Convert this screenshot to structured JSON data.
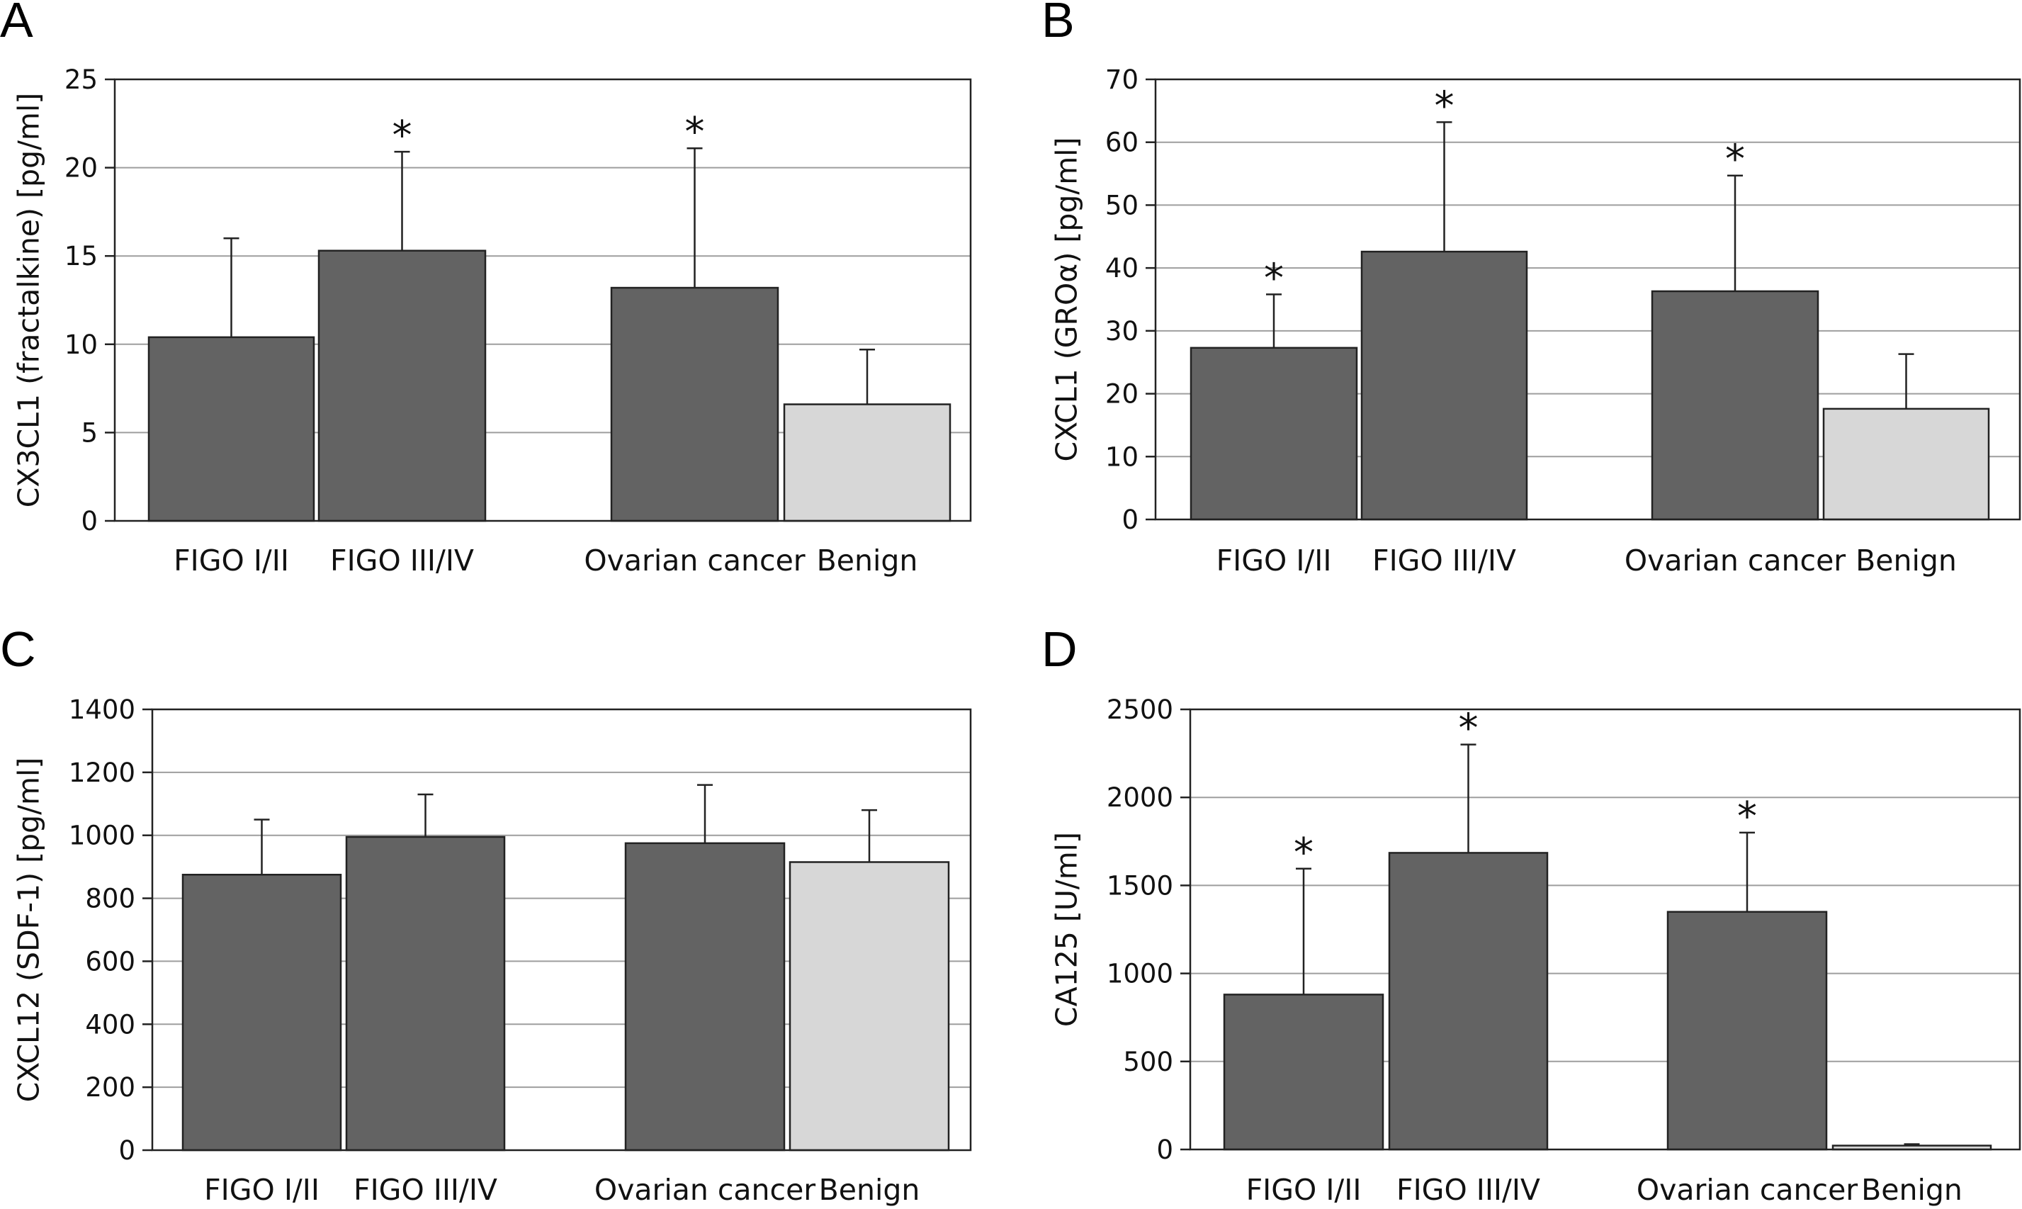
{
  "colors": {
    "cancer": "#636363",
    "benign": "#d7d7d7"
  },
  "chart_data": [
    {
      "panel": "A",
      "type": "bar",
      "ylabel": "CX3CL1 (fractalkine) [pg/ml]",
      "ylim": [
        0,
        25
      ],
      "yticks": [
        0,
        5,
        10,
        15,
        20,
        25
      ],
      "categories": [
        "FIGO I/II",
        "FIGO III/IV",
        "Ovarian cancer",
        "Benign"
      ],
      "values": [
        10.4,
        15.3,
        13.2,
        6.6
      ],
      "errors": [
        5.6,
        5.6,
        7.9,
        3.1
      ],
      "significant": [
        false,
        true,
        true,
        false
      ],
      "grid": true
    },
    {
      "panel": "B",
      "type": "bar",
      "ylabel": "CXCL1 (GROα) [pg/ml]",
      "ylim": [
        0,
        70
      ],
      "yticks": [
        0,
        10,
        20,
        30,
        40,
        50,
        60,
        70
      ],
      "categories": [
        "FIGO I/II",
        "FIGO III/IV",
        "Ovarian cancer",
        "Benign"
      ],
      "values": [
        27.3,
        42.6,
        36.3,
        17.6
      ],
      "errors": [
        8.5,
        20.6,
        18.4,
        8.7
      ],
      "significant": [
        true,
        true,
        true,
        false
      ],
      "grid": true
    },
    {
      "panel": "C",
      "type": "bar",
      "ylabel": "CXCL12 (SDF-1) [pg/ml]",
      "ylim": [
        0,
        1400
      ],
      "yticks": [
        0,
        200,
        400,
        600,
        800,
        1000,
        1200,
        1400
      ],
      "categories": [
        "FIGO I/II",
        "FIGO III/IV",
        "Ovarian cancer",
        "Benign"
      ],
      "values": [
        875,
        995,
        975,
        915
      ],
      "errors": [
        175,
        135,
        185,
        165
      ],
      "significant": [
        false,
        false,
        false,
        false
      ],
      "grid": true
    },
    {
      "panel": "D",
      "type": "bar",
      "ylabel": "CA125 [U/ml]",
      "ylim": [
        0,
        2500
      ],
      "yticks": [
        0,
        500,
        1000,
        1500,
        2000,
        2500
      ],
      "categories": [
        "FIGO I/II",
        "FIGO III/IV",
        "Ovarian cancer",
        "Benign"
      ],
      "values": [
        880,
        1685,
        1350,
        22
      ],
      "errors": [
        715,
        615,
        450,
        8
      ],
      "significant": [
        true,
        true,
        true,
        false
      ],
      "grid": true
    }
  ],
  "star_symbol": "*"
}
